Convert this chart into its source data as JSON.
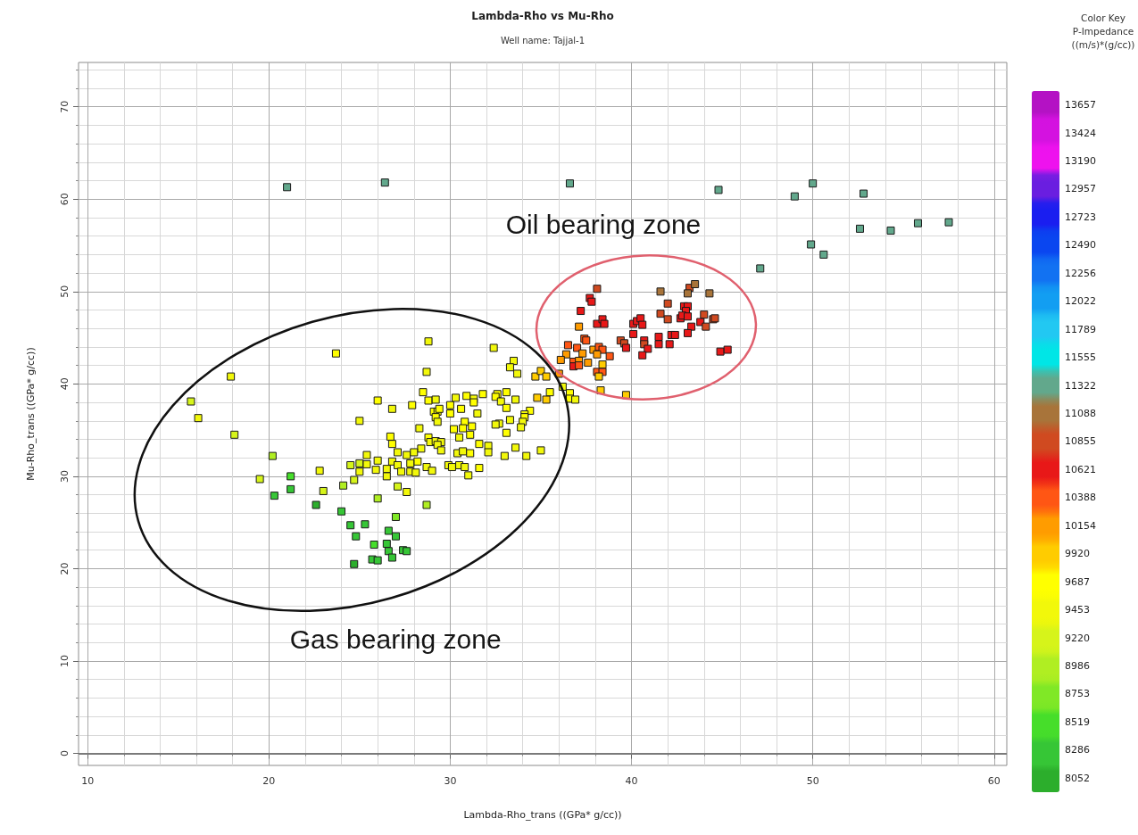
{
  "chart_data": {
    "type": "scatter",
    "title": "Lambda-Rho vs Mu-Rho",
    "subtitle": "Well name: Tajjal-1",
    "xlabel": "Lambda-Rho_trans ((GPa* g/cc))",
    "ylabel": "Mu-Rho_trans ((GPa* g/cc))",
    "clabel": "Color Key\nP-Impedance\n((m/s)*(g/cc))",
    "x": [
      23.7,
      17.9,
      15.7,
      16.1,
      18.1,
      26.0,
      26.8,
      25.0,
      26.7,
      26.8,
      27.1,
      27.6,
      25.4,
      26.0,
      25.0,
      24.5,
      25.4,
      26.8,
      27.1,
      26.5,
      25.9,
      25.0,
      27.3,
      22.8,
      24.7,
      26.5,
      19.5,
      21.2,
      20.2,
      21.2,
      20.3,
      23.0,
      24.1,
      27.1,
      27.6,
      26.0,
      22.6,
      24.0,
      27.0,
      24.5,
      25.3,
      26.6,
      24.8,
      27.0,
      25.8,
      26.5,
      26.6,
      27.4,
      27.6,
      26.8,
      25.7,
      26.0,
      24.7,
      28.8,
      28.7,
      28.5,
      28.8,
      29.2,
      27.9,
      29.1,
      29.3,
      29.4,
      29.2,
      29.3,
      30.0,
      30.0,
      30.3,
      30.6,
      30.9,
      31.3,
      31.3,
      31.8,
      31.5,
      28.3,
      30.2,
      30.8,
      30.7,
      31.2,
      30.5,
      31.1,
      28.8,
      28.9,
      29.2,
      29.5,
      29.3,
      29.5,
      28.4,
      28.0,
      28.2,
      27.8,
      27.8,
      28.1,
      28.7,
      29.0,
      29.9,
      30.1,
      30.5,
      30.8,
      30.4,
      30.7,
      31.1,
      31.0,
      31.6,
      31.6,
      32.1,
      32.1,
      28.7,
      32.4,
      33.5,
      33.3,
      33.7,
      32.6,
      32.5,
      33.1,
      32.8,
      33.6,
      33.1,
      33.3,
      32.7,
      32.5,
      33.1,
      33.6,
      33.0,
      34.2,
      35.0,
      34.4,
      34.1,
      34.1,
      34.0,
      33.9,
      34.7,
      35.0,
      35.3,
      34.8,
      35.3,
      35.5,
      36.2,
      36.6,
      36.6,
      36.9,
      36.0,
      38.1,
      37.7,
      37.8,
      37.2,
      38.1,
      38.4,
      38.5,
      37.1,
      37.4,
      37.5,
      36.5,
      37.0,
      37.9,
      38.2,
      38.4,
      37.3,
      36.4,
      36.1,
      38.1,
      38.8,
      36.8,
      37.1,
      37.6,
      36.8,
      37.1,
      38.4,
      38.1,
      38.4,
      38.2,
      38.3,
      39.7,
      39.4,
      39.6,
      39.7,
      40.1,
      40.1,
      40.3,
      40.5,
      40.6,
      40.7,
      40.7,
      40.9,
      40.6,
      41.5,
      41.5,
      42.1,
      42.2,
      42.4,
      41.6,
      42.0,
      41.6,
      42.0,
      42.7,
      42.9,
      43.1,
      43.0,
      42.8,
      43.1,
      43.2,
      43.5,
      43.1,
      44.3,
      44.0,
      43.8,
      44.1,
      44.5,
      44.6,
      43.3,
      43.1,
      44.9,
      45.3,
      21.0,
      26.4,
      36.6,
      44.8,
      49.0,
      50.0,
      52.8,
      52.6,
      54.3,
      55.8,
      57.5,
      49.9,
      50.6,
      47.1
    ],
    "values": [
      43.3,
      40.8,
      38.1,
      36.3,
      34.5,
      38.2,
      37.3,
      36.0,
      34.3,
      33.5,
      32.6,
      32.3,
      32.3,
      31.7,
      31.4,
      31.2,
      31.3,
      31.6,
      31.2,
      30.8,
      30.7,
      30.5,
      30.5,
      30.6,
      29.6,
      30.0,
      29.7,
      30.0,
      32.2,
      28.6,
      27.9,
      28.4,
      29.0,
      28.9,
      28.3,
      27.6,
      26.9,
      26.2,
      25.6,
      24.7,
      24.8,
      24.1,
      23.5,
      23.5,
      22.6,
      22.7,
      21.9,
      22.0,
      21.9,
      21.2,
      21.0,
      20.9,
      20.5,
      44.6,
      41.3,
      39.1,
      38.2,
      38.3,
      37.7,
      37.0,
      37.0,
      37.3,
      36.4,
      35.9,
      37.7,
      36.8,
      38.5,
      37.3,
      38.7,
      38.4,
      38.0,
      38.9,
      36.8,
      35.2,
      35.1,
      35.9,
      35.2,
      35.4,
      34.2,
      34.5,
      34.2,
      33.7,
      33.8,
      33.7,
      33.4,
      32.8,
      33.0,
      32.6,
      31.6,
      31.4,
      30.5,
      30.4,
      31.0,
      30.6,
      31.2,
      31.0,
      31.2,
      31.0,
      32.5,
      32.7,
      32.5,
      30.1,
      30.9,
      33.5,
      33.3,
      32.6,
      26.9,
      43.9,
      42.5,
      41.8,
      41.1,
      38.9,
      38.6,
      39.1,
      38.1,
      38.3,
      37.4,
      36.1,
      35.7,
      35.6,
      34.7,
      33.1,
      32.2,
      32.2,
      32.8,
      37.1,
      36.7,
      36.4,
      35.9,
      35.3,
      40.8,
      41.4,
      40.8,
      38.5,
      38.3,
      39.1,
      39.7,
      39.0,
      38.4,
      38.3,
      41.1,
      50.3,
      49.3,
      48.9,
      47.9,
      46.5,
      47.0,
      46.5,
      46.2,
      44.9,
      44.7,
      44.2,
      43.9,
      43.7,
      44.0,
      43.7,
      43.3,
      43.2,
      42.6,
      43.2,
      43.0,
      42.4,
      42.5,
      42.3,
      41.9,
      42.0,
      42.1,
      41.3,
      41.3,
      40.8,
      39.3,
      38.8,
      44.7,
      44.4,
      43.9,
      45.4,
      46.5,
      46.8,
      47.1,
      46.4,
      44.7,
      44.3,
      43.8,
      43.1,
      45.1,
      44.3,
      44.3,
      45.3,
      45.3,
      50.0,
      48.7,
      47.6,
      47.0,
      47.1,
      48.4,
      48.4,
      47.9,
      47.4,
      47.3,
      50.4,
      50.8,
      49.8,
      49.8,
      47.5,
      46.7,
      46.2,
      47.0,
      47.1,
      46.2,
      45.5,
      43.5,
      43.7,
      61.3,
      61.8,
      61.7,
      61.0,
      60.3,
      61.7,
      60.6,
      56.8,
      56.6,
      57.4,
      57.5,
      55.1,
      54.0,
      52.5
    ],
    "cvalues": [
      9687,
      9453,
      9220,
      9453,
      9220,
      9687,
      9453,
      9453,
      9687,
      9687,
      9453,
      9453,
      9453,
      9453,
      9220,
      9220,
      9453,
      9453,
      9453,
      9453,
      9453,
      9453,
      9453,
      9453,
      9220,
      9453,
      9220,
      8519,
      8986,
      8286,
      8286,
      9220,
      8986,
      9220,
      9453,
      8986,
      8052,
      8286,
      8753,
      8286,
      8286,
      8286,
      8286,
      8286,
      8519,
      8286,
      8286,
      8286,
      8286,
      8286,
      8286,
      8286,
      8052,
      9453,
      9453,
      9687,
      9687,
      9453,
      9687,
      9687,
      9453,
      9687,
      9687,
      9453,
      9687,
      9687,
      9453,
      9687,
      9687,
      9453,
      9687,
      9687,
      9453,
      9453,
      9687,
      9687,
      9687,
      9687,
      9453,
      9687,
      9687,
      9453,
      9453,
      9453,
      9453,
      9453,
      9453,
      9453,
      9687,
      9453,
      9453,
      9453,
      9453,
      9453,
      9453,
      9453,
      9453,
      9453,
      9453,
      9453,
      9687,
      9453,
      9687,
      9687,
      9453,
      9453,
      8986,
      9453,
      9453,
      9453,
      9453,
      9687,
      9687,
      9687,
      9453,
      9453,
      9687,
      9453,
      9453,
      9453,
      9687,
      9453,
      9453,
      9453,
      9453,
      9687,
      9453,
      9687,
      9453,
      9453,
      9920,
      9920,
      9920,
      9920,
      9920,
      9687,
      9453,
      9687,
      9687,
      9453,
      10154,
      10855,
      10621,
      10621,
      10621,
      10621,
      10621,
      10621,
      10154,
      10388,
      10388,
      10388,
      10388,
      10154,
      10388,
      10388,
      10154,
      10154,
      10154,
      10154,
      10388,
      10388,
      10154,
      10154,
      10621,
      10388,
      9920,
      10388,
      10388,
      9920,
      9920,
      9920,
      10855,
      10855,
      10621,
      10621,
      10621,
      10621,
      10621,
      10621,
      10621,
      10855,
      10621,
      10621,
      10621,
      10621,
      10621,
      10621,
      10621,
      11088,
      10855,
      10855,
      10855,
      10621,
      10621,
      10621,
      10621,
      10621,
      10621,
      10855,
      11088,
      11088,
      11088,
      10855,
      10621,
      10855,
      10855,
      10855,
      10621,
      10621,
      10621,
      10621,
      11322,
      11322,
      11322,
      11322,
      11322,
      11322,
      11322,
      11322,
      11322,
      11322,
      11322,
      11322,
      11322,
      11322
    ],
    "clim": [
      7935,
      13774
    ],
    "cticks": [
      8052,
      8286,
      8519,
      8753,
      8986,
      9220,
      9453,
      9687,
      9920,
      10154,
      10388,
      10621,
      10855,
      11088,
      11322,
      11555,
      11789,
      12022,
      12256,
      12490,
      12723,
      12957,
      13190,
      13424,
      13657
    ],
    "xlim": [
      9.5,
      60.7
    ],
    "ylim": [
      -1.3,
      74.8
    ],
    "xticks": [
      10,
      20,
      30,
      40,
      50,
      60
    ],
    "yticks": [
      0,
      10,
      20,
      30,
      40,
      50,
      60,
      70
    ],
    "grid": true,
    "marker": "square",
    "ref_lines": [
      {
        "axis": "y",
        "value": 0
      }
    ],
    "annotations": [
      "Oil bearing zone",
      "Gas bearing zone"
    ]
  }
}
